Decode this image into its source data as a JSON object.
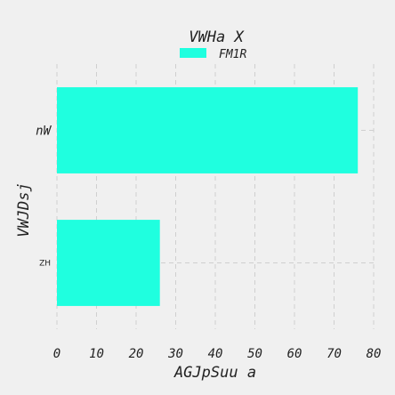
{
  "chart_data": {
    "type": "bar",
    "orientation": "horizontal",
    "title": "VWHa X",
    "xlabel": "AGJpSuu a",
    "ylabel": "VWJDsj",
    "categories": [
      "nW",
      "ZH"
    ],
    "series": [
      {
        "name": "FM1R",
        "values": [
          76,
          26
        ],
        "color": "#1fffdf"
      }
    ],
    "xlim": [
      0,
      80
    ],
    "xticks": [
      0,
      10,
      20,
      30,
      40,
      50,
      60,
      70,
      80
    ],
    "grid": true,
    "legend_position": "top-center"
  }
}
